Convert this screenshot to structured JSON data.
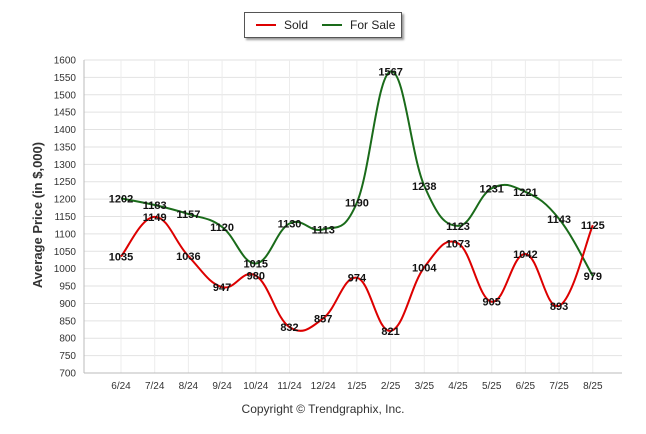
{
  "chart_data": {
    "type": "line",
    "categories": [
      "6/24",
      "7/24",
      "8/24",
      "9/24",
      "10/24",
      "11/24",
      "12/24",
      "1/25",
      "2/25",
      "3/25",
      "4/25",
      "5/25",
      "6/25",
      "7/25",
      "8/25"
    ],
    "series": [
      {
        "name": "Sold",
        "color": "#dd0000",
        "values": [
          1035,
          1149,
          1036,
          947,
          980,
          832,
          857,
          974,
          821,
          1004,
          1073,
          905,
          1042,
          893,
          1125
        ]
      },
      {
        "name": "For Sale",
        "color": "#1a6b1a",
        "values": [
          1202,
          1183,
          1157,
          1120,
          1015,
          1130,
          1113,
          1190,
          1567,
          1238,
          1123,
          1231,
          1221,
          1143,
          979
        ]
      }
    ],
    "ylabel": "Average Price (in $,000)",
    "xlabel": "",
    "ylim": [
      700,
      1600
    ],
    "yticks": [
      700,
      750,
      800,
      850,
      900,
      950,
      1000,
      1050,
      1100,
      1150,
      1200,
      1250,
      1300,
      1350,
      1400,
      1450,
      1500,
      1550,
      1600
    ],
    "grid": true,
    "legend": "top-center"
  },
  "legend": {
    "sold": "Sold",
    "for_sale": "For Sale"
  },
  "footer": "Copyright © Trendgraphix, Inc."
}
